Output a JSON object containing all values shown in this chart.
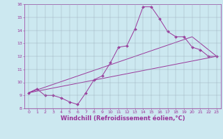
{
  "xlabel": "Windchill (Refroidissement éolien,°C)",
  "bg_color": "#cce8f0",
  "line_color": "#993399",
  "grid_color": "#99aabb",
  "xlim": [
    -0.5,
    23.5
  ],
  "ylim": [
    8.0,
    16.0
  ],
  "xticks": [
    0,
    1,
    2,
    3,
    4,
    5,
    6,
    7,
    8,
    9,
    10,
    11,
    12,
    13,
    14,
    15,
    16,
    17,
    18,
    19,
    20,
    21,
    22,
    23
  ],
  "yticks": [
    8,
    9,
    10,
    11,
    12,
    13,
    14,
    15,
    16
  ],
  "line1_x": [
    0,
    1,
    2,
    3,
    4,
    5,
    6,
    7,
    8,
    9,
    10,
    11,
    12,
    13,
    14,
    15,
    16,
    17,
    18,
    19,
    20,
    21,
    22,
    23
  ],
  "line1_y": [
    9.2,
    9.5,
    9.0,
    9.0,
    8.8,
    8.5,
    8.3,
    9.2,
    10.2,
    10.5,
    11.5,
    12.7,
    12.8,
    14.1,
    15.8,
    15.8,
    14.9,
    13.9,
    13.5,
    13.5,
    12.7,
    12.5,
    12.0,
    12.0
  ],
  "line2_x": [
    0,
    23
  ],
  "line2_y": [
    9.2,
    12.0
  ],
  "line3_x": [
    0,
    20,
    23
  ],
  "line3_y": [
    9.2,
    13.5,
    12.0
  ],
  "marker": "D",
  "markersize": 2.0,
  "linewidth": 0.7,
  "tick_fontsize": 4.5,
  "xlabel_fontsize": 6.0,
  "axis_color": "#993399",
  "tick_color": "#993399"
}
